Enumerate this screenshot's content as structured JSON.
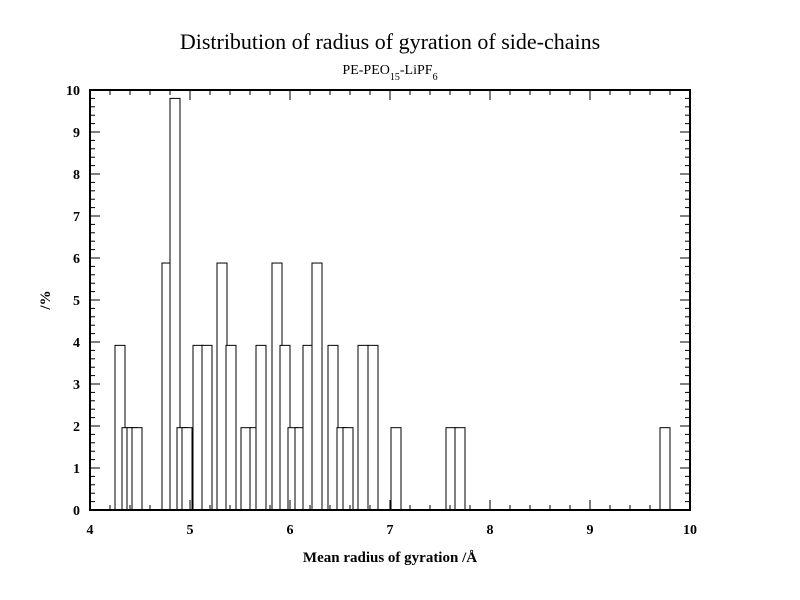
{
  "chart_data": {
    "type": "bar",
    "title": "Distribution of radius of gyration of side-chains",
    "subtitle": {
      "parts": [
        {
          "text": "PE-PEO",
          "style": "normal"
        },
        {
          "text": "15",
          "style": "sub"
        },
        {
          "text": "-LiPF",
          "style": "normal"
        },
        {
          "text": "6",
          "style": "sub"
        }
      ]
    },
    "xlabel": "Mean radius of gyration /Å",
    "ylabel": "/%",
    "xlim": [
      4,
      10
    ],
    "ylim": [
      0,
      10
    ],
    "x_ticks": [
      4,
      5,
      6,
      7,
      8,
      9,
      10
    ],
    "y_ticks": [
      0,
      1,
      2,
      3,
      4,
      5,
      6,
      7,
      8,
      9,
      10
    ],
    "bin_width": 0.1,
    "bins": [
      {
        "start": 4.25,
        "value": 3.92
      },
      {
        "start": 4.32,
        "value": 1.96
      },
      {
        "start": 4.37,
        "value": 1.96
      },
      {
        "start": 4.42,
        "value": 1.96
      },
      {
        "start": 4.72,
        "value": 5.88
      },
      {
        "start": 4.8,
        "value": 9.8
      },
      {
        "start": 4.87,
        "value": 1.96
      },
      {
        "start": 4.92,
        "value": 1.96
      },
      {
        "start": 5.03,
        "value": 3.92
      },
      {
        "start": 5.12,
        "value": 3.92
      },
      {
        "start": 5.27,
        "value": 5.88
      },
      {
        "start": 5.36,
        "value": 3.92
      },
      {
        "start": 5.51,
        "value": 1.96
      },
      {
        "start": 5.6,
        "value": 1.96
      },
      {
        "start": 5.66,
        "value": 3.92
      },
      {
        "start": 5.82,
        "value": 5.88
      },
      {
        "start": 5.9,
        "value": 3.92
      },
      {
        "start": 5.98,
        "value": 1.96
      },
      {
        "start": 6.05,
        "value": 1.96
      },
      {
        "start": 6.13,
        "value": 3.92
      },
      {
        "start": 6.22,
        "value": 5.88
      },
      {
        "start": 6.38,
        "value": 3.92
      },
      {
        "start": 6.47,
        "value": 1.96
      },
      {
        "start": 6.53,
        "value": 1.96
      },
      {
        "start": 6.68,
        "value": 3.92
      },
      {
        "start": 6.78,
        "value": 3.92
      },
      {
        "start": 7.01,
        "value": 1.96
      },
      {
        "start": 7.56,
        "value": 1.96
      },
      {
        "start": 7.65,
        "value": 1.96
      },
      {
        "start": 9.7,
        "value": 1.96
      }
    ],
    "grid": false,
    "legend": "none"
  }
}
